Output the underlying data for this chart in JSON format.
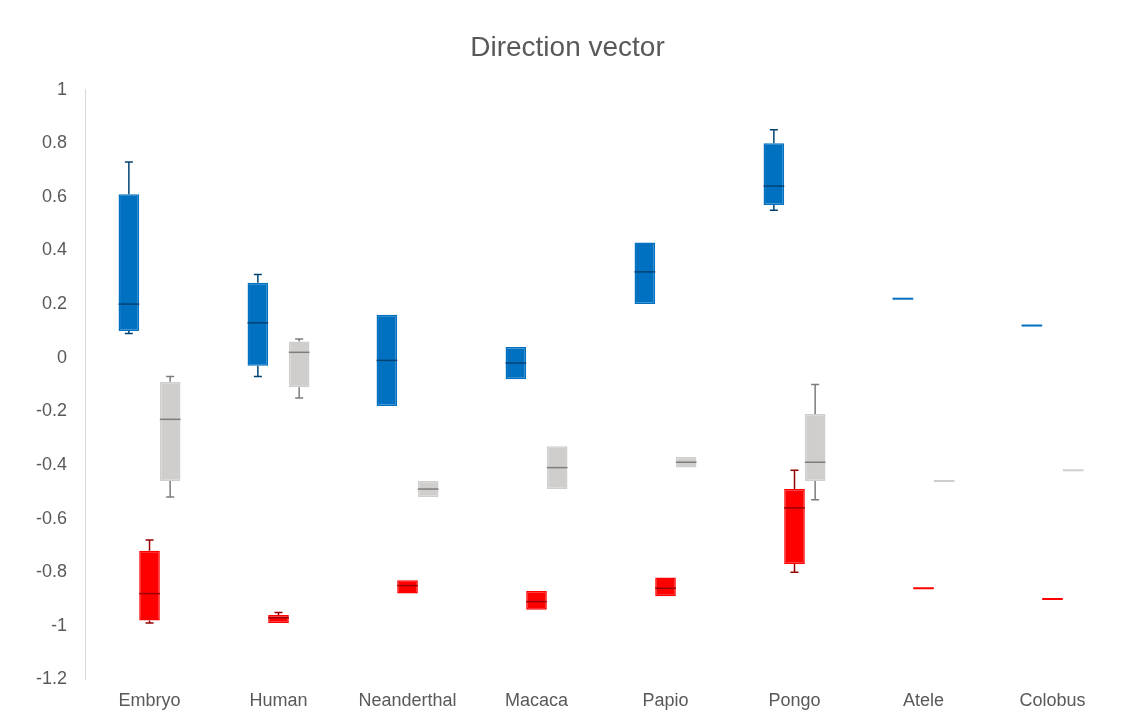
{
  "chart_data": {
    "type": "box",
    "title": "Direction vector",
    "categories": [
      "Embryo",
      "Human",
      "Neanderthal",
      "Macaca",
      "Papio",
      "Pongo",
      "Atele",
      "Colobus"
    ],
    "ylim": [
      -1.2,
      1
    ],
    "yticks": [
      -1.2,
      -1,
      -0.8,
      -0.6,
      -0.4,
      -0.2,
      0,
      0.2,
      0.4,
      0.6,
      0.8,
      1
    ],
    "series": [
      {
        "color": "#0070c0",
        "boxes": [
          {
            "low": 0.09,
            "q1": 0.1,
            "median": 0.2,
            "q3": 0.61,
            "high": 0.73
          },
          {
            "low": -0.07,
            "q1": -0.03,
            "median": 0.13,
            "q3": 0.28,
            "high": 0.31
          },
          {
            "low": -0.18,
            "q1": -0.18,
            "median": -0.01,
            "q3": 0.16,
            "high": 0.16
          },
          {
            "low": -0.08,
            "q1": -0.08,
            "median": -0.02,
            "q3": 0.04,
            "high": 0.04
          },
          {
            "low": 0.2,
            "q1": 0.2,
            "median": 0.32,
            "q3": 0.43,
            "high": 0.43
          },
          {
            "low": 0.55,
            "q1": 0.57,
            "median": 0.64,
            "q3": 0.8,
            "high": 0.85
          },
          {
            "low": 0.22,
            "q1": 0.22,
            "median": 0.22,
            "q3": 0.22,
            "high": 0.22
          },
          {
            "low": 0.12,
            "q1": 0.12,
            "median": 0.12,
            "q3": 0.12,
            "high": 0.12
          }
        ]
      },
      {
        "color": "#ff0000",
        "boxes": [
          {
            "low": -0.99,
            "q1": -0.98,
            "median": -0.88,
            "q3": -0.72,
            "high": -0.68
          },
          {
            "low": -0.99,
            "q1": -0.99,
            "median": -0.97,
            "q3": -0.96,
            "high": -0.95
          },
          {
            "low": -0.88,
            "q1": -0.88,
            "median": -0.85,
            "q3": -0.83,
            "high": -0.83
          },
          {
            "low": -0.94,
            "q1": -0.94,
            "median": -0.91,
            "q3": -0.87,
            "high": -0.87
          },
          {
            "low": -0.89,
            "q1": -0.89,
            "median": -0.86,
            "q3": -0.82,
            "high": -0.82
          },
          {
            "low": -0.8,
            "q1": -0.77,
            "median": -0.56,
            "q3": -0.49,
            "high": -0.42
          },
          {
            "low": -0.86,
            "q1": -0.86,
            "median": -0.86,
            "q3": -0.86,
            "high": -0.86
          },
          {
            "low": -0.9,
            "q1": -0.9,
            "median": -0.9,
            "q3": -0.9,
            "high": -0.9
          }
        ]
      },
      {
        "color": "#d0cecd",
        "boxes": [
          {
            "low": -0.52,
            "q1": -0.46,
            "median": -0.23,
            "q3": -0.09,
            "high": -0.07
          },
          {
            "low": -0.15,
            "q1": -0.11,
            "median": 0.02,
            "q3": 0.06,
            "high": 0.07
          },
          {
            "low": -0.52,
            "q1": -0.52,
            "median": -0.49,
            "q3": -0.46,
            "high": -0.46
          },
          {
            "low": -0.49,
            "q1": -0.49,
            "median": -0.41,
            "q3": -0.33,
            "high": -0.33
          },
          {
            "low": -0.41,
            "q1": -0.41,
            "median": -0.39,
            "q3": -0.37,
            "high": -0.37
          },
          {
            "low": -0.53,
            "q1": -0.46,
            "median": -0.39,
            "q3": -0.21,
            "high": -0.1
          },
          {
            "low": -0.46,
            "q1": -0.46,
            "median": -0.46,
            "q3": -0.46,
            "high": -0.46
          },
          {
            "low": -0.42,
            "q1": -0.42,
            "median": -0.42,
            "q3": -0.42,
            "high": -0.42
          }
        ]
      }
    ]
  }
}
